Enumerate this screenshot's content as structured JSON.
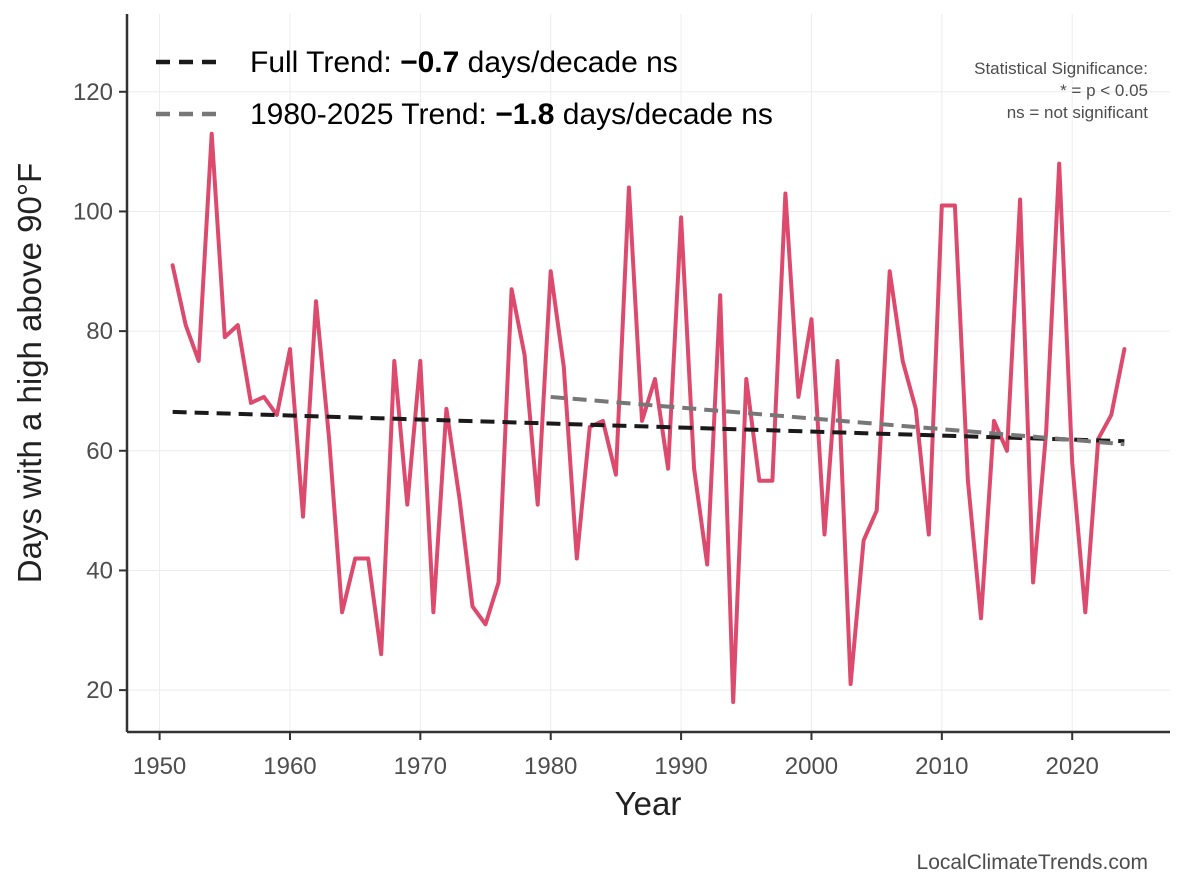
{
  "chart_data": {
    "type": "line",
    "title": "",
    "xlabel": "Year",
    "ylabel": "Days with a high above 90°F",
    "xlim": [
      1947.5,
      2027.5
    ],
    "ylim": [
      13,
      133
    ],
    "xticks": [
      1950,
      1960,
      1970,
      1980,
      1990,
      2000,
      2010,
      2020
    ],
    "yticks": [
      20,
      40,
      60,
      80,
      100,
      120
    ],
    "grid": true,
    "colors": {
      "data": "#dc4a6e",
      "full_trend": "#1a1a1a",
      "recent_trend": "#777777"
    },
    "series": [
      {
        "x": [
          1951,
          1952,
          1953,
          1954,
          1955,
          1956,
          1957,
          1958,
          1959,
          1960,
          1961,
          1962,
          1963,
          1964,
          1965,
          1966,
          1967,
          1968,
          1969,
          1970,
          1971,
          1972,
          1973,
          1974,
          1975,
          1976,
          1977,
          1978,
          1979,
          1980,
          1981,
          1982,
          1983,
          1984,
          1985,
          1986,
          1987,
          1988,
          1989,
          1990,
          1991,
          1992,
          1993,
          1994,
          1995,
          1996,
          1997,
          1998,
          1999,
          2000,
          2001,
          2002,
          2003,
          2004,
          2005,
          2006,
          2007,
          2008,
          2009,
          2010,
          2011,
          2012,
          2013,
          2014,
          2015,
          2016,
          2017,
          2018,
          2019,
          2020,
          2021,
          2022,
          2023,
          2024
        ],
        "values": [
          91,
          81,
          75,
          113,
          79,
          81,
          68,
          69,
          66,
          77,
          49,
          85,
          62,
          33,
          42,
          42,
          26,
          75,
          51,
          75,
          33,
          67,
          52,
          34,
          31,
          38,
          87,
          76,
          51,
          90,
          74,
          42,
          64,
          65,
          56,
          104,
          65,
          72,
          57,
          99,
          57,
          41,
          86,
          18,
          72,
          55,
          55,
          103,
          69,
          82,
          46,
          75,
          21,
          45,
          50,
          90,
          75,
          67,
          46,
          101,
          101,
          55,
          32,
          65,
          60,
          102,
          38,
          63,
          108,
          58,
          33,
          62,
          66,
          77
        ]
      },
      {
        "name": "Full Trend",
        "x": [
          1951,
          2024
        ],
        "values": [
          66.5,
          61.6
        ]
      },
      {
        "name": "1980-2025 Trend",
        "x": [
          1980,
          2024
        ],
        "values": [
          69,
          61.1
        ]
      }
    ],
    "legend": {
      "position": "top-left",
      "entries": [
        {
          "prefix": "Full Trend: ",
          "value": "−0.7",
          "suffix": " days/decade ns"
        },
        {
          "prefix": "1980-2025 Trend: ",
          "value": "−1.8",
          "suffix": " days/decade ns"
        }
      ]
    },
    "annotation": {
      "lines": [
        "Statistical Significance:",
        "* = p < 0.05",
        "ns = not significant"
      ]
    },
    "credit": "LocalClimateTrends.com"
  }
}
